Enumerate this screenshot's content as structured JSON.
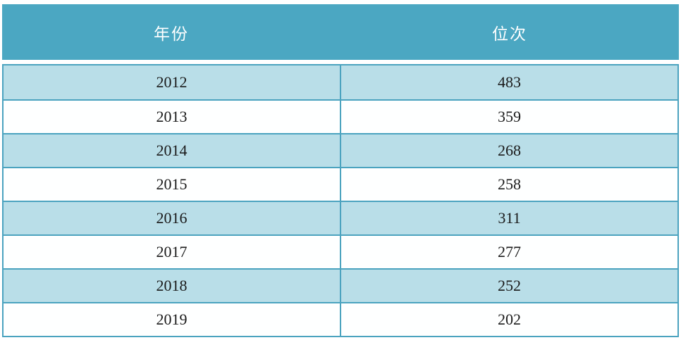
{
  "table": {
    "columns": [
      {
        "label": "年份"
      },
      {
        "label": "位次"
      }
    ],
    "rows": [
      {
        "year": "2012",
        "rank": "483"
      },
      {
        "year": "2013",
        "rank": "359"
      },
      {
        "year": "2014",
        "rank": "268"
      },
      {
        "year": "2015",
        "rank": "258"
      },
      {
        "year": "2016",
        "rank": "311"
      },
      {
        "year": "2017",
        "rank": "277"
      },
      {
        "year": "2018",
        "rank": "252"
      },
      {
        "year": "2019",
        "rank": "202"
      }
    ]
  },
  "colors": {
    "header_bg": "#4BA7C2",
    "row_alt_bg": "#B9DEE8",
    "row_bg": "#FEFFFF",
    "border": "#4BA3BF",
    "header_text": "#FFFFFF",
    "body_text": "#1A1A1A"
  },
  "chart_data": {
    "type": "table",
    "title": "",
    "columns": [
      "年份",
      "位次"
    ],
    "rows": [
      [
        2012,
        483
      ],
      [
        2013,
        359
      ],
      [
        2014,
        268
      ],
      [
        2015,
        258
      ],
      [
        2016,
        311
      ],
      [
        2017,
        277
      ],
      [
        2018,
        252
      ],
      [
        2019,
        202
      ]
    ]
  }
}
